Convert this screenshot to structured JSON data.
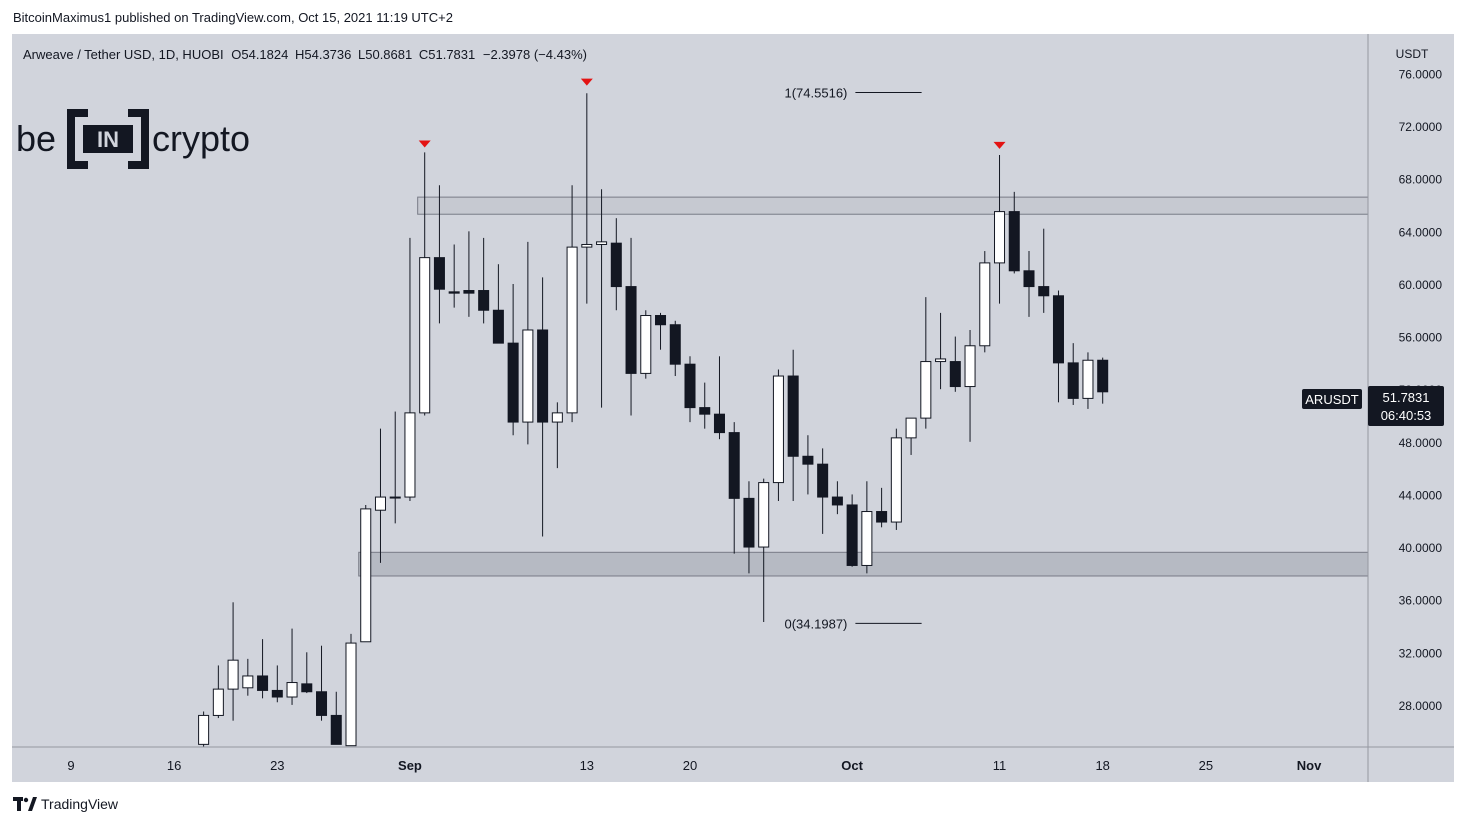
{
  "header": {
    "published": "BitcoinMaximus1 published on TradingView.com, Oct 15, 2021 11:19 UTC+2"
  },
  "legend": {
    "symbol": "Arweave / Tether USD, 1D, HUOBI",
    "o_label": "O",
    "o": "54.1824",
    "h_label": "H",
    "h": "54.3736",
    "l_label": "L",
    "l": "50.8681",
    "c_label": "C",
    "c": "51.7831",
    "change": "−2.3978 (−4.43%)"
  },
  "branding": {
    "logo_text": "be[IN]crypto"
  },
  "price_scale": {
    "currency": "USDT"
  },
  "last_price": {
    "symbol": "ARUSDT",
    "price": "51.7831",
    "countdown": "06:40:53"
  },
  "footer": {
    "brand": "TradingView"
  },
  "colors": {
    "background": "#d1d4dc",
    "up": "#ffffff",
    "down": "#131722",
    "resistance_marker": "#e31313",
    "zone": "#b2b5be"
  },
  "chart_data": {
    "type": "candlestick",
    "title": "Arweave / Tether USD, 1D, HUOBI",
    "ylim": [
      24.8,
      79.0
    ],
    "y_ticks": [
      "76.0000",
      "72.0000",
      "68.0000",
      "64.0000",
      "60.0000",
      "56.0000",
      "52.0000",
      "48.0000",
      "44.0000",
      "40.0000",
      "36.0000",
      "32.0000",
      "28.0000"
    ],
    "x_ticks": [
      {
        "label": "9",
        "date": "2021-08-09"
      },
      {
        "label": "16",
        "date": "2021-08-16"
      },
      {
        "label": "23",
        "date": "2021-08-23"
      },
      {
        "label": "Sep",
        "date": "2021-09-01"
      },
      {
        "label": "13",
        "date": "2021-09-13"
      },
      {
        "label": "20",
        "date": "2021-09-20"
      },
      {
        "label": "Oct",
        "date": "2021-10-01"
      },
      {
        "label": "11",
        "date": "2021-10-11"
      },
      {
        "label": "18",
        "date": "2021-10-18"
      },
      {
        "label": "25",
        "date": "2021-10-25"
      },
      {
        "label": "Nov",
        "date": "2021-11-01"
      }
    ],
    "x_range": [
      "2021-08-05",
      "2021-11-05"
    ],
    "candles": [
      {
        "date": "2021-08-18",
        "o": 25.0,
        "h": 27.5,
        "l": 24.8,
        "c": 27.2
      },
      {
        "date": "2021-08-19",
        "o": 27.2,
        "h": 31.0,
        "l": 27.0,
        "c": 29.2
      },
      {
        "date": "2021-08-20",
        "o": 29.2,
        "h": 35.8,
        "l": 26.8,
        "c": 31.4
      },
      {
        "date": "2021-08-21",
        "o": 29.3,
        "h": 31.5,
        "l": 28.7,
        "c": 30.2
      },
      {
        "date": "2021-08-22",
        "o": 30.2,
        "h": 33.0,
        "l": 28.5,
        "c": 29.1
      },
      {
        "date": "2021-08-23",
        "o": 29.1,
        "h": 31.0,
        "l": 28.2,
        "c": 28.6
      },
      {
        "date": "2021-08-24",
        "o": 28.6,
        "h": 33.8,
        "l": 28.0,
        "c": 29.7
      },
      {
        "date": "2021-08-25",
        "o": 29.6,
        "h": 32.0,
        "l": 28.9,
        "c": 29.0
      },
      {
        "date": "2021-08-26",
        "o": 29.0,
        "h": 32.5,
        "l": 26.8,
        "c": 27.2
      },
      {
        "date": "2021-08-27",
        "o": 27.2,
        "h": 29.0,
        "l": 25.0,
        "c": 25.0
      },
      {
        "date": "2021-08-28",
        "o": 24.9,
        "h": 33.4,
        "l": 24.9,
        "c": 32.7
      },
      {
        "date": "2021-08-29",
        "o": 32.8,
        "h": 43.2,
        "l": 32.8,
        "c": 42.9
      },
      {
        "date": "2021-08-30",
        "o": 42.8,
        "h": 49.0,
        "l": 38.8,
        "c": 43.8
      },
      {
        "date": "2021-08-31",
        "o": 43.8,
        "h": 50.3,
        "l": 41.8,
        "c": 43.8
      },
      {
        "date": "2021-09-01",
        "o": 43.8,
        "h": 63.5,
        "l": 43.5,
        "c": 50.2
      },
      {
        "date": "2021-09-02",
        "o": 50.2,
        "h": 70.0,
        "l": 50.0,
        "c": 62.0
      },
      {
        "date": "2021-09-03",
        "o": 62.0,
        "h": 67.5,
        "l": 57.0,
        "c": 59.6
      },
      {
        "date": "2021-09-04",
        "o": 59.4,
        "h": 63.0,
        "l": 58.2,
        "c": 59.3
      },
      {
        "date": "2021-09-05",
        "o": 59.5,
        "h": 64.0,
        "l": 57.5,
        "c": 59.3
      },
      {
        "date": "2021-09-06",
        "o": 59.5,
        "h": 63.5,
        "l": 57.0,
        "c": 58.0
      },
      {
        "date": "2021-09-07",
        "o": 58.0,
        "h": 61.5,
        "l": 56.0,
        "c": 55.5
      },
      {
        "date": "2021-09-08",
        "o": 55.5,
        "h": 60.0,
        "l": 48.5,
        "c": 49.5
      },
      {
        "date": "2021-09-09",
        "o": 49.5,
        "h": 63.2,
        "l": 47.8,
        "c": 56.5
      },
      {
        "date": "2021-09-10",
        "o": 56.5,
        "h": 60.5,
        "l": 40.8,
        "c": 49.5
      },
      {
        "date": "2021-09-11",
        "o": 49.5,
        "h": 51.0,
        "l": 46.0,
        "c": 50.2
      },
      {
        "date": "2021-09-12",
        "o": 50.2,
        "h": 67.5,
        "l": 49.5,
        "c": 62.8
      },
      {
        "date": "2021-09-13",
        "o": 62.8,
        "h": 74.5,
        "l": 58.5,
        "c": 63.0
      },
      {
        "date": "2021-09-14",
        "o": 63.0,
        "h": 67.2,
        "l": 50.6,
        "c": 63.2
      },
      {
        "date": "2021-09-15",
        "o": 63.1,
        "h": 65.0,
        "l": 58.0,
        "c": 59.8
      },
      {
        "date": "2021-09-16",
        "o": 59.8,
        "h": 63.5,
        "l": 50.0,
        "c": 53.2
      },
      {
        "date": "2021-09-17",
        "o": 53.2,
        "h": 58.0,
        "l": 52.8,
        "c": 57.6
      },
      {
        "date": "2021-09-18",
        "o": 57.6,
        "h": 57.8,
        "l": 55.0,
        "c": 56.9
      },
      {
        "date": "2021-09-19",
        "o": 56.9,
        "h": 57.2,
        "l": 53.0,
        "c": 53.9
      },
      {
        "date": "2021-09-20",
        "o": 53.9,
        "h": 54.5,
        "l": 49.5,
        "c": 50.6
      },
      {
        "date": "2021-09-21",
        "o": 50.6,
        "h": 52.5,
        "l": 49.0,
        "c": 50.1
      },
      {
        "date": "2021-09-22",
        "o": 50.1,
        "h": 54.5,
        "l": 48.2,
        "c": 48.7
      },
      {
        "date": "2021-09-23",
        "o": 48.7,
        "h": 49.5,
        "l": 39.5,
        "c": 43.7
      },
      {
        "date": "2021-09-24",
        "o": 43.7,
        "h": 45.0,
        "l": 38.0,
        "c": 40.0
      },
      {
        "date": "2021-09-25",
        "o": 40.0,
        "h": 45.2,
        "l": 34.3,
        "c": 44.9
      },
      {
        "date": "2021-09-26",
        "o": 44.9,
        "h": 53.5,
        "l": 43.5,
        "c": 53.0
      },
      {
        "date": "2021-09-27",
        "o": 53.0,
        "h": 55.0,
        "l": 43.5,
        "c": 46.9
      },
      {
        "date": "2021-09-28",
        "o": 46.9,
        "h": 48.5,
        "l": 44.0,
        "c": 46.3
      },
      {
        "date": "2021-09-29",
        "o": 46.3,
        "h": 47.5,
        "l": 41.0,
        "c": 43.8
      },
      {
        "date": "2021-09-30",
        "o": 43.8,
        "h": 45.0,
        "l": 42.5,
        "c": 43.2
      },
      {
        "date": "2021-10-01",
        "o": 43.2,
        "h": 44.0,
        "l": 38.5,
        "c": 38.6
      },
      {
        "date": "2021-10-02",
        "o": 38.6,
        "h": 45.0,
        "l": 38.0,
        "c": 42.7
      },
      {
        "date": "2021-10-03",
        "o": 42.7,
        "h": 44.5,
        "l": 41.5,
        "c": 41.9
      },
      {
        "date": "2021-10-04",
        "o": 41.9,
        "h": 49.0,
        "l": 41.3,
        "c": 48.3
      },
      {
        "date": "2021-10-05",
        "o": 48.3,
        "h": 49.8,
        "l": 47.0,
        "c": 49.8
      },
      {
        "date": "2021-10-06",
        "o": 49.8,
        "h": 59.0,
        "l": 49.0,
        "c": 54.1
      },
      {
        "date": "2021-10-07",
        "o": 54.1,
        "h": 57.8,
        "l": 52.0,
        "c": 54.3
      },
      {
        "date": "2021-10-08",
        "o": 54.1,
        "h": 56.0,
        "l": 51.8,
        "c": 52.2
      },
      {
        "date": "2021-10-09",
        "o": 52.2,
        "h": 56.5,
        "l": 48.0,
        "c": 55.3
      },
      {
        "date": "2021-10-10",
        "o": 55.3,
        "h": 62.5,
        "l": 54.8,
        "c": 61.6
      },
      {
        "date": "2021-10-11",
        "o": 61.6,
        "h": 69.8,
        "l": 58.5,
        "c": 65.5
      },
      {
        "date": "2021-10-12",
        "o": 65.5,
        "h": 67.0,
        "l": 60.8,
        "c": 61.0
      },
      {
        "date": "2021-10-13",
        "o": 61.0,
        "h": 62.5,
        "l": 57.5,
        "c": 59.8
      },
      {
        "date": "2021-10-14",
        "o": 59.8,
        "h": 64.2,
        "l": 57.8,
        "c": 59.1
      },
      {
        "date": "2021-10-15",
        "o": 59.1,
        "h": 59.5,
        "l": 51.0,
        "c": 54.0
      },
      {
        "date": "2021-10-16",
        "o": 54.0,
        "h": 55.5,
        "l": 50.8,
        "c": 51.3
      },
      {
        "date": "2021-10-17",
        "o": 51.3,
        "h": 54.8,
        "l": 50.5,
        "c": 54.2
      },
      {
        "date": "2021-10-18",
        "o": 54.2,
        "h": 54.4,
        "l": 50.9,
        "c": 51.8
      }
    ],
    "zones": [
      {
        "from": 65.3,
        "to": 66.6,
        "start": "2021-09-02"
      },
      {
        "from": 37.8,
        "to": 39.6,
        "start": "2021-08-29"
      }
    ],
    "fib_levels": [
      {
        "label": "1(74.5516)",
        "value": 74.5516,
        "start": "2021-09-30",
        "end": "2021-10-03"
      },
      {
        "label": "0(34.1987)",
        "value": 34.1987,
        "start": "2021-09-30",
        "end": "2021-10-03"
      }
    ],
    "resistance_markers": [
      {
        "date": "2021-09-02",
        "value": 70.6
      },
      {
        "date": "2021-09-13",
        "value": 75.3
      },
      {
        "date": "2021-10-11",
        "value": 70.5
      }
    ]
  }
}
